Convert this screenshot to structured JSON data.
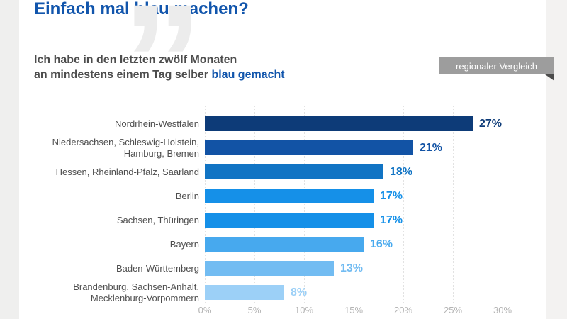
{
  "page": {
    "title": "Einfach mal blau machen?",
    "subtitle_line1": "Ich habe in den letzten zwölf Monaten",
    "subtitle_line2_prefix": "an mindestens einem Tag selber ",
    "subtitle_line2_highlight": "blau gemacht",
    "ribbon_label": "regionaler Vergleich",
    "quote_icon": "”"
  },
  "colors": {
    "title_blue": "#1155ac",
    "subtitle_gray": "#4d4d4d",
    "ribbon_gray": "#9d9d9d",
    "ribbon_fold": "#4b4b4b",
    "axis_gray": "#b4b4b4",
    "gridline": "#e2e2e2"
  },
  "chart_data": {
    "type": "bar",
    "orientation": "horizontal",
    "title": "Einfach mal blau machen?",
    "subtitle": "Ich habe in den letzten zwölf Monaten an mindestens einem Tag selber blau gemacht",
    "categories": [
      "Nordrhein-Westfalen",
      "Niedersachsen, Schleswig-Holstein,\nHamburg, Bremen",
      "Hessen, Rheinland-Pfalz, Saarland",
      "Berlin",
      "Sachsen, Thüringen",
      "Bayern",
      "Baden-Württemberg",
      "Brandenburg, Sachsen-Anhalt,\nMecklenburg-Vorpommern"
    ],
    "values": [
      27,
      21,
      18,
      17,
      17,
      16,
      13,
      8
    ],
    "value_labels": [
      "27%",
      "21%",
      "18%",
      "17%",
      "17%",
      "16%",
      "13%",
      "8%"
    ],
    "bar_colors": [
      "#0d3b78",
      "#1253a5",
      "#1174c4",
      "#1590e8",
      "#1590e8",
      "#47a9ee",
      "#72bcf2",
      "#9cd0f7"
    ],
    "x_ticks": [
      "0%",
      "5%",
      "10%",
      "15%",
      "20%",
      "25%",
      "30%"
    ],
    "x_tick_values": [
      0,
      5,
      10,
      15,
      20,
      25,
      30
    ],
    "xlim": [
      0,
      34.5
    ],
    "grid": "vertical-dotted",
    "legend": "none",
    "value_suffix": "%"
  }
}
